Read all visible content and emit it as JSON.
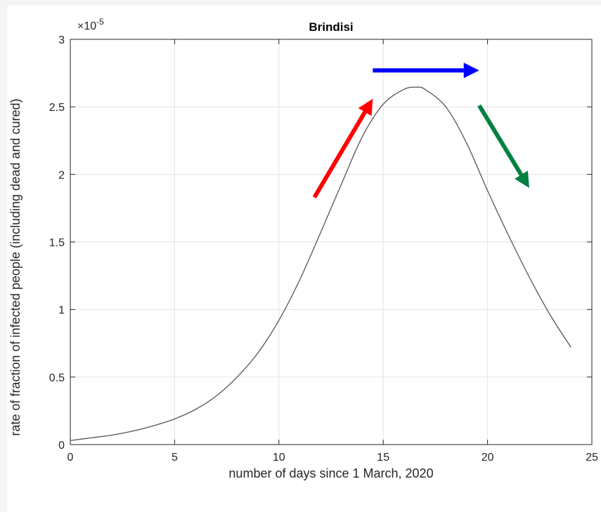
{
  "chart_data": {
    "type": "line",
    "title": "Brindisi",
    "xlabel": "number of days since 1 March, 2020",
    "ylabel": "rate of fraction of infected people (including dead and cured)",
    "xlim": [
      0,
      25
    ],
    "ylim": [
      0,
      3
    ],
    "y_exponent_label": "×10",
    "y_exponent_power": "-5",
    "x_ticks": [
      0,
      5,
      10,
      15,
      20,
      25
    ],
    "x_tick_labels": [
      "0",
      "5",
      "10",
      "15",
      "20",
      "25"
    ],
    "y_ticks": [
      0,
      0.5,
      1,
      1.5,
      2,
      2.5,
      3
    ],
    "y_tick_labels": [
      "0",
      "0.5",
      "1",
      "1.5",
      "2",
      "2.5",
      "3"
    ],
    "grid": true,
    "series": [
      {
        "color": "#555555",
        "x": [
          0,
          1,
          2,
          3,
          4,
          5,
          6,
          7,
          8,
          9,
          10,
          11,
          12,
          13,
          14,
          15,
          16,
          16.6,
          17,
          18,
          19,
          20,
          21,
          22,
          23,
          24
        ],
        "y": [
          0.03,
          0.05,
          0.07,
          0.1,
          0.14,
          0.19,
          0.26,
          0.36,
          0.5,
          0.68,
          0.92,
          1.22,
          1.57,
          1.93,
          2.28,
          2.52,
          2.63,
          2.645,
          2.63,
          2.5,
          2.23,
          1.88,
          1.55,
          1.24,
          0.96,
          0.72
        ]
      }
    ],
    "annotations": [
      {
        "type": "arrow",
        "color": "#ff0000",
        "from": [
          11.7,
          1.83
        ],
        "to": [
          14.5,
          2.56
        ]
      },
      {
        "type": "arrow",
        "color": "#0000ff",
        "from": [
          14.5,
          2.77
        ],
        "to": [
          19.6,
          2.77
        ]
      },
      {
        "type": "arrow",
        "color": "#008040",
        "from": [
          19.6,
          2.51
        ],
        "to": [
          22,
          1.9
        ]
      }
    ]
  }
}
